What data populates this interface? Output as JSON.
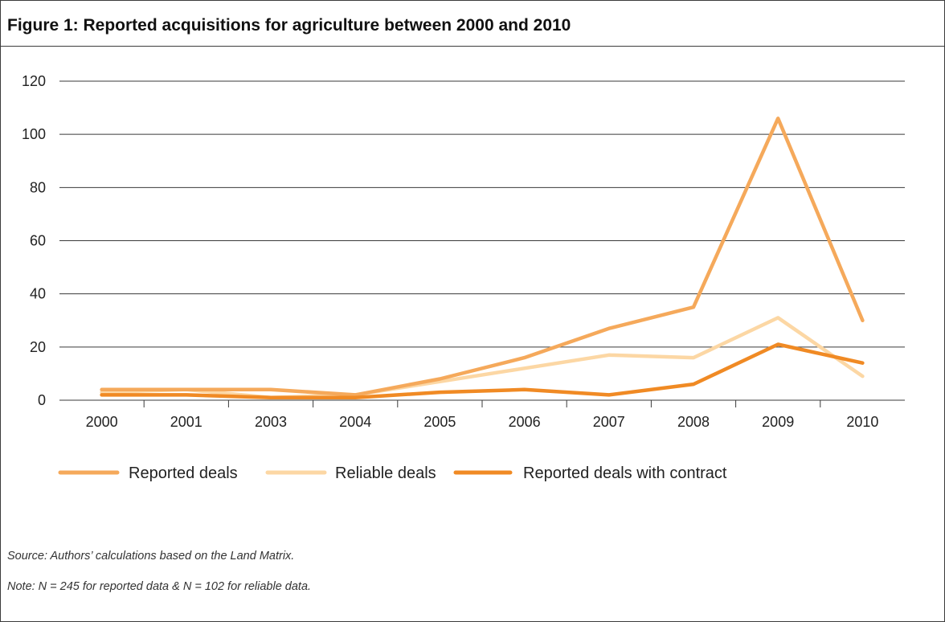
{
  "figure": {
    "title": "Figure 1: Reported acquisitions for agriculture between 2000 and 2010",
    "source": "Source: Authors’ calculations based on the Land Matrix.",
    "note": "Note: N = 245 for reported data & N = 102 for reliable data."
  },
  "chart_data": {
    "type": "line",
    "title": "Figure 1: Reported acquisitions for agriculture between 2000 and 2010",
    "xlabel": "",
    "ylabel": "",
    "categories": [
      "2000",
      "2001",
      "2003",
      "2004",
      "2005",
      "2006",
      "2007",
      "2008",
      "2009",
      "2010"
    ],
    "ylim": [
      0,
      120
    ],
    "yticks": [
      0,
      20,
      40,
      60,
      80,
      100,
      120
    ],
    "grid": "horizontal",
    "legend_position": "bottom-left",
    "series": [
      {
        "name": "Reported deals",
        "color": "#f5a95b",
        "values": [
          4,
          4,
          4,
          2,
          8,
          16,
          27,
          35,
          106,
          30
        ]
      },
      {
        "name": "Reliable deals",
        "color": "#fcd7a4",
        "values": [
          3,
          4,
          1,
          2,
          7,
          12,
          17,
          16,
          31,
          9
        ]
      },
      {
        "name": "Reported deals with contract",
        "color": "#f08a24",
        "values": [
          2,
          2,
          1,
          1,
          3,
          4,
          2,
          6,
          21,
          14
        ]
      }
    ]
  }
}
